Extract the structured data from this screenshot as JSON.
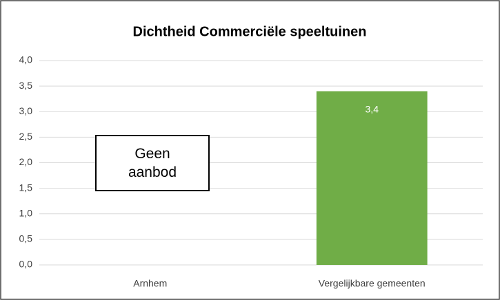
{
  "chart_data": {
    "type": "bar",
    "title": "Dichtheid Commerciële speeltuinen",
    "categories": [
      "Arnhem",
      "Vergelijkbare gemeenten"
    ],
    "values": [
      null,
      3.4
    ],
    "value_labels": [
      null,
      "3,4"
    ],
    "color": "#70ad47",
    "annotation": "Geen aanbod",
    "ylim": [
      0,
      4
    ],
    "yticks": [
      {
        "value": 0,
        "label": "0,0"
      },
      {
        "value": 0.5,
        "label": "0,5"
      },
      {
        "value": 1,
        "label": "1,0"
      },
      {
        "value": 1.5,
        "label": "1,5"
      },
      {
        "value": 2,
        "label": "2,0"
      },
      {
        "value": 2.5,
        "label": "2,5"
      },
      {
        "value": 3,
        "label": "3,0"
      },
      {
        "value": 3.5,
        "label": "3,5"
      },
      {
        "value": 4,
        "label": "4,0"
      }
    ],
    "grid": true
  }
}
